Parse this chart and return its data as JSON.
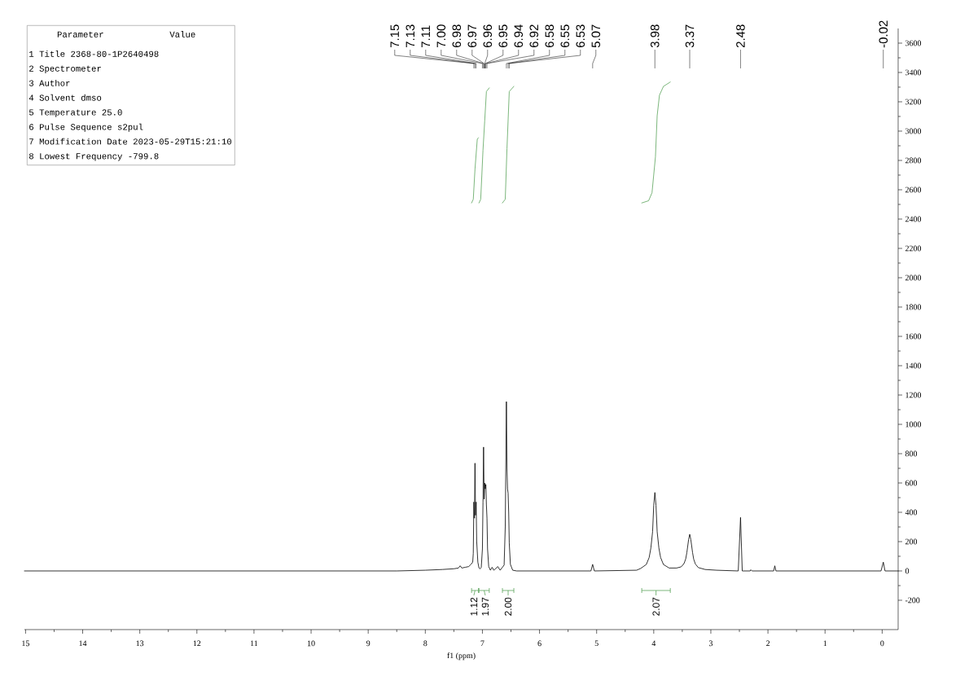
{
  "chart_data": [
    {
      "type": "other",
      "annotations": [
        "Parameter",
        "Value",
        "1 Title 2368-80-1P2640498",
        "2 Spectrometer",
        "3 Author",
        "4 Solvent dmso",
        "5 Temperature 25.0",
        "6 Pulse Sequence s2pul",
        "7 Modification Date 2023-05-29T15:21:10",
        "8 Lowest Frequency -799.8"
      ]
    },
    {
      "type": "line",
      "xlabel": "f1 (ppm)",
      "xlim": [
        15.02,
        -0.28
      ],
      "xticks": [
        15,
        14,
        13,
        12,
        11,
        10,
        9,
        8,
        7,
        6,
        5,
        4,
        3,
        2,
        1,
        0
      ],
      "ylim": [
        -400,
        3700
      ],
      "yticks": [
        -200,
        0,
        200,
        400,
        600,
        800,
        1000,
        1200,
        1400,
        1600,
        1800,
        2000,
        2200,
        2400,
        2600,
        2800,
        3000,
        3200,
        3400,
        3600
      ],
      "series": [
        {
          "color": "#000000",
          "x": [
            15.02,
            8.5,
            8.0,
            7.7,
            7.5,
            7.42,
            7.39,
            7.36,
            7.3,
            7.24,
            7.2,
            7.17,
            7.16,
            7.15,
            7.14,
            7.13,
            7.12,
            7.11,
            7.1,
            7.08,
            7.06,
            7.04,
            7.02,
            7.0,
            6.99,
            6.98,
            6.97,
            6.96,
            6.95,
            6.94,
            6.93,
            6.92,
            6.91,
            6.89,
            6.86,
            6.83,
            6.8,
            6.73,
            6.69,
            6.62,
            6.6,
            6.58,
            6.57,
            6.56,
            6.55,
            6.54,
            6.53,
            6.51,
            6.47,
            6.4,
            5.2,
            5.1,
            5.07,
            5.04,
            4.3,
            4.23,
            4.13,
            4.08,
            4.05,
            4.02,
            4.0,
            3.98,
            3.96,
            3.94,
            3.91,
            3.88,
            3.83,
            3.73,
            3.6,
            3.52,
            3.47,
            3.44,
            3.42,
            3.39,
            3.37,
            3.35,
            3.32,
            3.3,
            3.27,
            3.22,
            3.1,
            2.9,
            2.52,
            2.48,
            2.45,
            2.31,
            2.3,
            2.28,
            1.9,
            1.88,
            1.86,
            0.02,
            -0.02,
            -0.05,
            -0.28
          ],
          "values": [
            0,
            0,
            5,
            10,
            15,
            20,
            35,
            20,
            25,
            30,
            45,
            60,
            120,
            470,
            360,
            735,
            380,
            470,
            200,
            60,
            20,
            15,
            25,
            150,
            470,
            845,
            490,
            600,
            560,
            590,
            450,
            360,
            150,
            30,
            5,
            25,
            5,
            30,
            5,
            40,
            300,
            1155,
            700,
            560,
            530,
            400,
            190,
            45,
            5,
            0,
            0,
            0,
            45,
            0,
            5,
            17,
            44,
            92,
            157,
            268,
            447,
            535,
            447,
            268,
            157,
            92,
            44,
            20,
            20,
            28,
            50,
            82,
            125,
            213,
            250,
            213,
            125,
            80,
            47,
            23,
            10,
            5,
            0,
            365,
            0,
            0,
            8,
            0,
            0,
            35,
            0,
            0,
            60,
            0,
            0
          ]
        },
        {
          "color": "#5ba35b",
          "x": [
            7.19,
            7.16,
            7.13,
            7.09,
            7.07
          ],
          "values": [
            2510,
            2535,
            2740,
            2945,
            2955
          ]
        },
        {
          "color": "#5ba35b",
          "x": [
            7.06,
            7.03,
            7.01,
            6.99,
            6.96,
            6.93,
            6.88
          ],
          "values": [
            2510,
            2535,
            2700,
            2870,
            3070,
            3270,
            3295
          ]
        },
        {
          "color": "#5ba35b",
          "x": [
            6.65,
            6.6,
            6.57,
            6.53,
            6.45
          ],
          "values": [
            2510,
            2535,
            2880,
            3270,
            3305
          ]
        },
        {
          "color": "#5ba35b",
          "x": [
            4.21,
            4.09,
            4.03,
            3.97,
            3.94,
            3.9,
            3.83,
            3.71
          ],
          "values": [
            2510,
            2525,
            2580,
            2825,
            3105,
            3245,
            3305,
            3335
          ]
        }
      ],
      "annotations": [
        "7.15",
        "7.13",
        "7.11",
        "7.00",
        "6.98",
        "6.97",
        "6.96",
        "6.95",
        "6.94",
        "6.92",
        "6.58",
        "6.55",
        "6.53",
        "5.07",
        "3.98",
        "3.37",
        "2.48",
        "-0.02",
        "1.12",
        "1.97",
        "2.00",
        "2.07"
      ]
    }
  ]
}
